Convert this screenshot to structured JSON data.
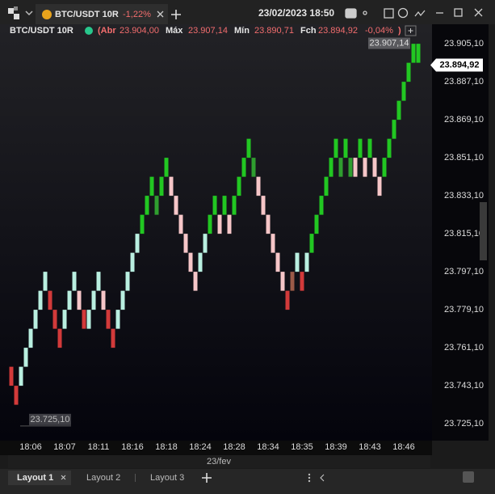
{
  "tab": {
    "symbol": "BTC/USDT 10R",
    "change": "-1,22%"
  },
  "header": {
    "datetime": "23/02/2023 18:50"
  },
  "legend": {
    "symbol": "BTC/USDT 10R",
    "open_label": "(Abr",
    "open": "23.904,00",
    "high_label": "Máx",
    "high": "23.907,14",
    "low_label": "Mín",
    "low": "23.890,71",
    "close_label": "Fch",
    "close": "23.894,92",
    "change": "-0,04%",
    "close_paren": ")"
  },
  "layouts": [
    "Layout 1",
    "Layout 2",
    "Layout 3"
  ],
  "chart_data": {
    "type": "renko",
    "open": [
      23752,
      23743,
      23743,
      23752,
      23761,
      23770,
      23779,
      23788,
      23788,
      23779,
      23770,
      23770,
      23779,
      23788,
      23788,
      23779,
      23770,
      23779,
      23788,
      23788,
      23779,
      23770,
      23770,
      23779,
      23788,
      23797,
      23806,
      23815,
      23824,
      23833,
      23833,
      23833,
      23842,
      23842,
      23833,
      23824,
      23815,
      23806,
      23797,
      23797,
      23806,
      23815,
      23824,
      23824,
      23824,
      23824,
      23824,
      23833,
      23842,
      23851,
      23851,
      23842,
      23833,
      23824,
      23815,
      23806,
      23797,
      23788,
      23788,
      23797,
      23797,
      23797,
      23806,
      23815,
      23824,
      23833,
      23842,
      23851,
      23851,
      23851,
      23851,
      23851,
      23851,
      23851,
      23851,
      23851,
      23842,
      23842,
      23851,
      23860,
      23869,
      23878,
      23887,
      23896,
      23896
    ],
    "close": [
      23743,
      23734,
      23752,
      23761,
      23770,
      23779,
      23788,
      23797,
      23779,
      23770,
      23761,
      23779,
      23788,
      23797,
      23779,
      23770,
      23779,
      23788,
      23797,
      23779,
      23770,
      23761,
      23779,
      23788,
      23797,
      23806,
      23815,
      23824,
      23833,
      23842,
      23824,
      23842,
      23851,
      23833,
      23824,
      23815,
      23806,
      23797,
      23788,
      23806,
      23815,
      23824,
      23833,
      23815,
      23833,
      23815,
      23833,
      23842,
      23851,
      23860,
      23842,
      23833,
      23824,
      23815,
      23806,
      23797,
      23788,
      23779,
      23797,
      23806,
      23788,
      23806,
      23815,
      23824,
      23833,
      23842,
      23851,
      23860,
      23842,
      23860,
      23842,
      23842,
      23860,
      23842,
      23860,
      23842,
      23833,
      23851,
      23860,
      23869,
      23878,
      23887,
      23896,
      23905,
      23905
    ],
    "colors": [
      "#d23a3a",
      "#d23a3a",
      "#b9efe0",
      "#b9efe0",
      "#b9efe0",
      "#b9efe0",
      "#b9efe0",
      "#b9efe0",
      "#d23a3a",
      "#d23a3a",
      "#d23a3a",
      "#b9efe0",
      "#b9efe0",
      "#b9efe0",
      "#f6c6c8",
      "#d23a3a",
      "#b9efe0",
      "#b9efe0",
      "#b9efe0",
      "#f6c6c8",
      "#d23a3a",
      "#d23a3a",
      "#b9efe0",
      "#b9efe0",
      "#b9efe0",
      "#b9efe0",
      "#b9efe0",
      "#22c722",
      "#22c722",
      "#22c722",
      "#2f9e2f",
      "#22c722",
      "#22c722",
      "#f6c6c8",
      "#f6c6c8",
      "#f6c6c8",
      "#f6c6c8",
      "#f6c6c8",
      "#f6c6c8",
      "#b9efe0",
      "#b9efe0",
      "#22c722",
      "#22c722",
      "#f6c6c8",
      "#22c722",
      "#f6c6c8",
      "#22c722",
      "#22c722",
      "#22c722",
      "#22c722",
      "#2f9e2f",
      "#f6c6c8",
      "#f6c6c8",
      "#f6c6c8",
      "#f6c6c8",
      "#f6c6c8",
      "#f6c6c8",
      "#d23a3a",
      "#9b5a48",
      "#b9efe0",
      "#d23a3a",
      "#b9efe0",
      "#22c722",
      "#22c722",
      "#22c722",
      "#22c722",
      "#22c722",
      "#22c722",
      "#2f9e2f",
      "#22c722",
      "#2f9e2f",
      "#f6c6c8",
      "#22c722",
      "#f6c6c8",
      "#22c722",
      "#f6c6c8",
      "#f6c6c8",
      "#22c722",
      "#22c722",
      "#22c722",
      "#22c722",
      "#22c722",
      "#22c722",
      "#22c722",
      "#22c722"
    ],
    "xlim": [
      -0.67,
      86.5
    ],
    "xticks": [
      {
        "value": 4,
        "label": "18:06"
      },
      {
        "value": 11,
        "label": "18:07"
      },
      {
        "value": 18,
        "label": "18:11"
      },
      {
        "value": 25,
        "label": "18:16"
      },
      {
        "value": 32,
        "label": "18:18"
      },
      {
        "value": 39,
        "label": "18:24"
      },
      {
        "value": 46,
        "label": "18:28"
      },
      {
        "value": 53,
        "label": "18:34"
      },
      {
        "value": 60,
        "label": "18:35"
      },
      {
        "value": 67,
        "label": "18:39"
      },
      {
        "value": 74,
        "label": "18:43"
      },
      {
        "value": 81,
        "label": "18:46"
      }
    ],
    "x_axis_date": "23/fev",
    "ylim": [
      23717,
      23908.5
    ],
    "yticks": [
      {
        "value": 23905.1,
        "label": "23.905,10"
      },
      {
        "value": 23887.1,
        "label": "23.887,10"
      },
      {
        "value": 23869.1,
        "label": "23.869,10"
      },
      {
        "value": 23851.1,
        "label": "23.851,10"
      },
      {
        "value": 23833.1,
        "label": "23.833,10"
      },
      {
        "value": 23815.1,
        "label": "23.815,10"
      },
      {
        "value": 23797.1,
        "label": "23.797,10"
      },
      {
        "value": 23779.1,
        "label": "23.779,10"
      },
      {
        "value": 23761.1,
        "label": "23.761,10"
      },
      {
        "value": 23743.1,
        "label": "23.743,10"
      },
      {
        "value": 23725.1,
        "label": "23.725,10"
      }
    ],
    "last_price": {
      "value": 23894.92,
      "label": "23.894,92"
    },
    "max_marker": {
      "value": 23907.14,
      "label": "23.907,14"
    },
    "min_marker": {
      "value": 23725.1,
      "label": "23.725,10"
    }
  }
}
